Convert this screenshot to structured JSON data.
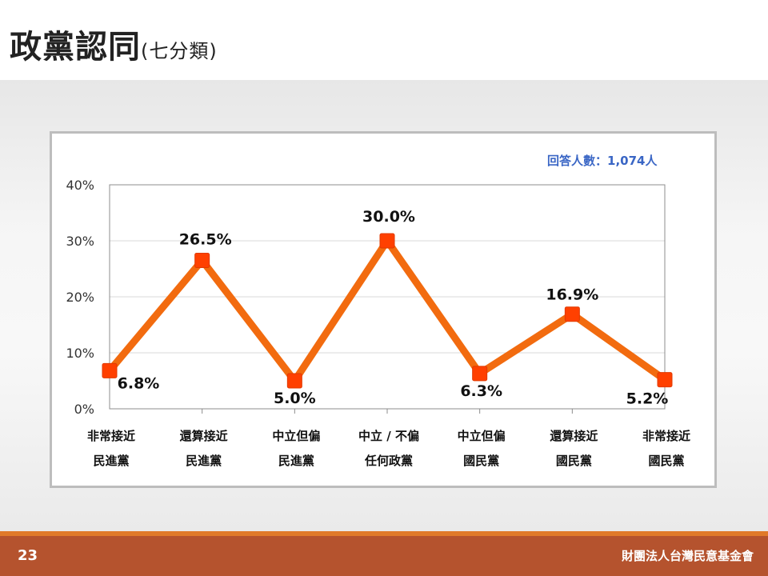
{
  "slide": {
    "title": "政黨認同",
    "subtitle": "(七分類)",
    "page_number": "23",
    "organization": "財團法人台灣民意基金會"
  },
  "chart_data": {
    "type": "line",
    "respondents_label": "回答人數：1,074人",
    "categories": [
      [
        "非常接近",
        "民進黨"
      ],
      [
        "還算接近",
        "民進黨"
      ],
      [
        "中立但偏",
        "民進黨"
      ],
      [
        "中立 / 不偏",
        "任何政黨"
      ],
      [
        "中立但偏",
        "國民黨"
      ],
      [
        "還算接近",
        "國民黨"
      ],
      [
        "非常接近",
        "國民黨"
      ]
    ],
    "values": [
      6.8,
      26.5,
      5.0,
      30.0,
      6.3,
      16.9,
      5.2
    ],
    "value_labels": [
      "6.8%",
      "26.5%",
      "5.0%",
      "30.0%",
      "6.3%",
      "16.9%",
      "5.2%"
    ],
    "yticks": [
      "0%",
      "10%",
      "20%",
      "30%",
      "40%"
    ],
    "ylim": [
      0,
      40
    ],
    "grid": true,
    "line_color": "#f26b0f",
    "marker_color": "#ff4000"
  }
}
